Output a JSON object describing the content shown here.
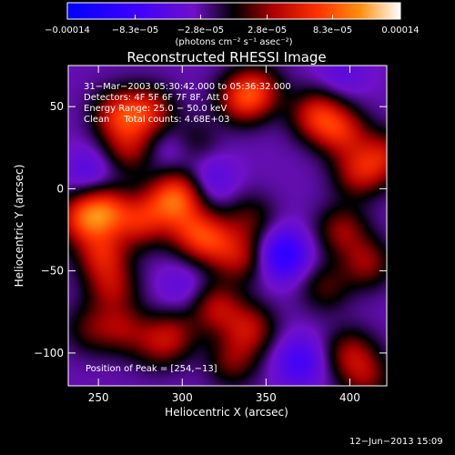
{
  "chart_data": {
    "type": "heatmap",
    "title": "Reconstructed RHESSI Image",
    "xlabel": "Heliocentric X (arcsec)",
    "ylabel": "Heliocentric Y (arcsec)",
    "xlim": [
      232,
      422
    ],
    "ylim": [
      -120,
      75
    ],
    "x_ticks": [
      250,
      300,
      350,
      400
    ],
    "y_ticks": [
      50,
      0,
      -50,
      -100
    ],
    "x_tick_labels": [
      "250",
      "300",
      "350",
      "400"
    ],
    "y_tick_labels": [
      "50",
      "0",
      "−50",
      "−100"
    ],
    "colorbar": {
      "min": -0.00014,
      "max": 0.00014,
      "tick_values": [
        -0.00014,
        -8.3e-05,
        -2.8e-05,
        2.8e-05,
        8.3e-05,
        0.00014
      ],
      "tick_labels": [
        "−0.00014",
        "−8.3e−05",
        "−2.8e−05",
        "2.8e−05",
        "8.3e−05",
        "0.00014"
      ],
      "unit": "(photons cm⁻² s⁻¹ asec⁻²)"
    },
    "annotations": [
      "31−Mar−2003 05:30:42.000 to 05:36:32.000",
      "Detectors: 4F 5F 6F 7F 8F, Att 0",
      "Energy Range: 25.0 − 50.0 keV",
      "Clean     Total counts: 4.68E+03"
    ],
    "peak_label": "Position of Peak = [254,−13]",
    "peak_position": [
      254,
      -13
    ],
    "blobs": [
      {
        "x": 262,
        "y": 45,
        "amp": 1.0
      },
      {
        "x": 280,
        "y": 47,
        "amp": 0.9
      },
      {
        "x": 268,
        "y": 24,
        "amp": 0.7
      },
      {
        "x": 240,
        "y": -18,
        "amp": 1.0
      },
      {
        "x": 254,
        "y": -13,
        "amp": 1.1
      },
      {
        "x": 252,
        "y": -40,
        "amp": 0.9
      },
      {
        "x": 258,
        "y": -60,
        "amp": 0.7
      },
      {
        "x": 245,
        "y": -85,
        "amp": 0.5
      },
      {
        "x": 275,
        "y": -20,
        "amp": 0.85
      },
      {
        "x": 290,
        "y": -8,
        "amp": 0.75
      },
      {
        "x": 300,
        "y": -2,
        "amp": 0.9
      },
      {
        "x": 305,
        "y": -25,
        "amp": 0.8
      },
      {
        "x": 318,
        "y": -32,
        "amp": 0.85
      },
      {
        "x": 335,
        "y": -42,
        "amp": 0.7
      },
      {
        "x": 340,
        "y": -18,
        "amp": 0.5
      },
      {
        "x": 335,
        "y": 55,
        "amp": 0.85
      },
      {
        "x": 345,
        "y": 60,
        "amp": 0.75
      },
      {
        "x": 305,
        "y": 28,
        "amp": 0.5
      },
      {
        "x": 380,
        "y": 45,
        "amp": 1.0
      },
      {
        "x": 395,
        "y": 35,
        "amp": 0.9
      },
      {
        "x": 405,
        "y": 10,
        "amp": 0.8
      },
      {
        "x": 420,
        "y": 20,
        "amp": 0.8
      },
      {
        "x": 395,
        "y": -25,
        "amp": 0.7
      },
      {
        "x": 410,
        "y": -45,
        "amp": 0.7
      },
      {
        "x": 385,
        "y": -60,
        "amp": 0.5
      },
      {
        "x": 265,
        "y": -85,
        "amp": 0.6
      },
      {
        "x": 285,
        "y": -95,
        "amp": 0.5
      },
      {
        "x": 295,
        "y": -88,
        "amp": 0.55
      },
      {
        "x": 320,
        "y": -72,
        "amp": 0.8
      },
      {
        "x": 340,
        "y": -85,
        "amp": 0.8
      },
      {
        "x": 330,
        "y": -105,
        "amp": 0.6
      },
      {
        "x": 400,
        "y": -100,
        "amp": 0.7
      },
      {
        "x": 410,
        "y": -115,
        "amp": 0.6
      },
      {
        "x": 360,
        "y": -40,
        "amp": -0.9
      },
      {
        "x": 315,
        "y": 5,
        "amp": -0.5
      },
      {
        "x": 295,
        "y": 25,
        "amp": -0.4
      },
      {
        "x": 300,
        "y": -60,
        "amp": -0.3
      },
      {
        "x": 370,
        "y": -105,
        "amp": -0.6
      },
      {
        "x": 245,
        "y": 10,
        "amp": -0.4
      },
      {
        "x": 395,
        "y": 70,
        "amp": -0.3
      }
    ]
  },
  "footer": {
    "date": "12−Jun−2013 15:09"
  }
}
